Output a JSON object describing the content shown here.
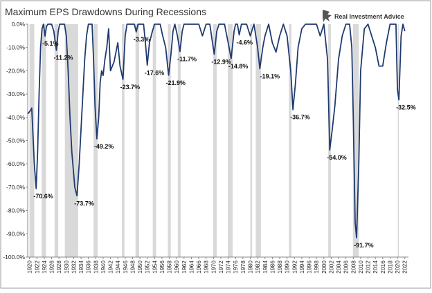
{
  "chart_data": {
    "type": "line",
    "title": "Maximum EPS Drawdowns During Recessions",
    "logo": "Real Investment Advice",
    "xlim": [
      1919.5,
      2023.0
    ],
    "xticks": [
      1920,
      1922,
      1924,
      1926,
      1928,
      1930,
      1932,
      1934,
      1936,
      1938,
      1940,
      1942,
      1944,
      1946,
      1948,
      1950,
      1952,
      1954,
      1956,
      1958,
      1960,
      1962,
      1964,
      1966,
      1968,
      1970,
      1972,
      1974,
      1976,
      1978,
      1980,
      1982,
      1984,
      1986,
      1988,
      1990,
      1992,
      1994,
      1996,
      1998,
      2000,
      2002,
      2004,
      2006,
      2008,
      2010,
      2012,
      2014,
      2016,
      2018,
      2020,
      2022
    ],
    "ylim": [
      -100,
      0
    ],
    "yticks": [
      {
        "value": 0,
        "label": "0.0%"
      },
      {
        "value": -10,
        "label": "-10.0%"
      },
      {
        "value": -20,
        "label": "-20.0%"
      },
      {
        "value": -30,
        "label": "-30.0%"
      },
      {
        "value": -40,
        "label": "-40.0%"
      },
      {
        "value": -50,
        "label": "-50.0%"
      },
      {
        "value": -60,
        "label": "-60.0%"
      },
      {
        "value": -70,
        "label": "-70.0%"
      },
      {
        "value": -80,
        "label": "-80.0%"
      },
      {
        "value": -90,
        "label": "-90.0%"
      },
      {
        "value": -100,
        "label": "-100.0%"
      }
    ],
    "grid": false,
    "recession_color": "#d9d9d9",
    "recessions": [
      {
        "start": 1920.0,
        "end": 1921.3
      },
      {
        "start": 1923.3,
        "end": 1924.5
      },
      {
        "start": 1926.8,
        "end": 1927.8
      },
      {
        "start": 1929.6,
        "end": 1933.2
      },
      {
        "start": 1937.4,
        "end": 1938.5
      },
      {
        "start": 1945.1,
        "end": 1945.8
      },
      {
        "start": 1948.8,
        "end": 1949.8
      },
      {
        "start": 1953.5,
        "end": 1954.4
      },
      {
        "start": 1957.6,
        "end": 1958.4
      },
      {
        "start": 1960.3,
        "end": 1961.1
      },
      {
        "start": 1969.9,
        "end": 1970.9
      },
      {
        "start": 1973.9,
        "end": 1975.2
      },
      {
        "start": 1980.0,
        "end": 1980.5
      },
      {
        "start": 1981.5,
        "end": 1982.9
      },
      {
        "start": 1990.5,
        "end": 1991.2
      },
      {
        "start": 2001.2,
        "end": 2001.9
      },
      {
        "start": 2007.9,
        "end": 2009.5
      },
      {
        "start": 2020.1,
        "end": 2020.4
      }
    ],
    "x": [
      1919.5,
      1920.3,
      1920.6,
      1921.3,
      1921.8,
      1922.2,
      1922.6,
      1923.0,
      1923.4,
      1923.8,
      1924.2,
      1924.6,
      1925.0,
      1926.0,
      1926.6,
      1927.3,
      1927.8,
      1928.2,
      1929.5,
      1930.0,
      1930.5,
      1931.0,
      1931.5,
      1932.3,
      1932.9,
      1933.5,
      1934.0,
      1934.5,
      1935.0,
      1935.5,
      1936.0,
      1937.0,
      1937.4,
      1937.8,
      1938.3,
      1938.8,
      1939.2,
      1939.6,
      1940.0,
      1940.5,
      1941.0,
      1941.5,
      1942.0,
      1943.0,
      1944.0,
      1944.6,
      1945.4,
      1946.0,
      1946.5,
      1948.5,
      1949.0,
      1949.5,
      1951.0,
      1951.5,
      1952.0,
      1952.6,
      1953.4,
      1954.0,
      1955.5,
      1956.2,
      1957.0,
      1957.8,
      1958.5,
      1959.0,
      1959.5,
      1960.2,
      1960.9,
      1961.5,
      1962.0,
      1966.0,
      1967.0,
      1968.0,
      1969.0,
      1970.2,
      1970.9,
      1971.5,
      1973.0,
      1974.0,
      1974.8,
      1975.6,
      1976.0,
      1976.5,
      1977.0,
      1977.6,
      1979.0,
      1980.0,
      1981.0,
      1982.0,
      1982.6,
      1983.4,
      1984.0,
      1985.0,
      1986.0,
      1987.0,
      1988.0,
      1989.0,
      1990.0,
      1991.0,
      1991.6,
      1992.3,
      1993.0,
      1994.0,
      1995.0,
      1998.0,
      1999.0,
      2000.0,
      2001.0,
      2001.6,
      2002.3,
      2003.0,
      2004.0,
      2005.0,
      2006.0,
      2007.0,
      2007.6,
      2008.0,
      2008.5,
      2008.9,
      2009.5,
      2010.0,
      2011.0,
      2012.0,
      2013.0,
      2014.0,
      2015.0,
      2016.0,
      2017.0,
      2018.0,
      2019.6,
      2020.0,
      2020.4,
      2021.0,
      2021.5,
      2022.0
    ],
    "series": [
      {
        "name": "EPS Drawdown",
        "color": "#1f3a6e",
        "values": [
          -38.5,
          -37,
          -36,
          -60,
          -70.6,
          -55,
          -30,
          -10,
          -2,
          0,
          -5.1,
          -1,
          0,
          0,
          -3,
          -11.2,
          -3,
          0,
          0,
          -5,
          -20,
          -40,
          -55,
          -70,
          -73.7,
          -60,
          -45,
          -30,
          -15,
          -5,
          0,
          0,
          -15,
          -35,
          -49.2,
          -40,
          -25,
          -20,
          -22,
          -15,
          -10,
          -2,
          -20,
          -16,
          -8,
          -18,
          -23.7,
          -5,
          0,
          0,
          -3.3,
          0,
          0,
          -8,
          -17.6,
          -8,
          -3,
          0,
          0,
          -5,
          -10,
          -21.9,
          -12,
          -3,
          0,
          -5,
          -11.7,
          -3,
          0,
          0,
          -5,
          0,
          0,
          -12.9,
          -3,
          0,
          0,
          -8,
          -14.8,
          -3,
          0,
          0,
          -4.6,
          0,
          0,
          -5,
          0,
          -10,
          -19.1,
          -10,
          -5,
          0,
          -8,
          -12,
          -5,
          0,
          -5,
          -20,
          -36.7,
          -25,
          -10,
          -2,
          0,
          0,
          -5,
          0,
          -15,
          -54.0,
          -45,
          -35,
          -15,
          -5,
          0,
          0,
          -10,
          -40,
          -85,
          -91.7,
          -60,
          -20,
          -2,
          0,
          -5,
          -10,
          -18,
          -18,
          -8,
          0,
          0,
          -28,
          -32.5,
          -5,
          0,
          -3
        ]
      }
    ],
    "annotations": [
      {
        "x": 1921.8,
        "value": -70.6,
        "label": "-70.6%"
      },
      {
        "x": 1924.2,
        "value": -5.1,
        "label": "-5.1%"
      },
      {
        "x": 1927.3,
        "value": -11.2,
        "label": "-11.2%"
      },
      {
        "x": 1932.9,
        "value": -73.7,
        "label": "-73.7%"
      },
      {
        "x": 1938.3,
        "value": -49.2,
        "label": "-49.2%"
      },
      {
        "x": 1945.4,
        "value": -23.7,
        "label": "-23.7%"
      },
      {
        "x": 1949.0,
        "value": -3.3,
        "label": "-3.3%"
      },
      {
        "x": 1952.0,
        "value": -17.6,
        "label": "-17.6%"
      },
      {
        "x": 1957.8,
        "value": -21.9,
        "label": "-21.9%"
      },
      {
        "x": 1960.9,
        "value": -11.7,
        "label": "-11.7%"
      },
      {
        "x": 1970.2,
        "value": -12.9,
        "label": "-12.9%"
      },
      {
        "x": 1974.8,
        "value": -14.8,
        "label": "-14.8%"
      },
      {
        "x": 1977.0,
        "value": -4.6,
        "label": "-4.6%"
      },
      {
        "x": 1983.4,
        "value": -19.1,
        "label": "-19.1%"
      },
      {
        "x": 1991.6,
        "value": -36.7,
        "label": "-36.7%"
      },
      {
        "x": 2001.6,
        "value": -54.0,
        "label": "-54.0%"
      },
      {
        "x": 2008.9,
        "value": -91.7,
        "label": "-91.7%"
      },
      {
        "x": 2020.4,
        "value": -32.5,
        "label": "-32.5%"
      }
    ]
  }
}
